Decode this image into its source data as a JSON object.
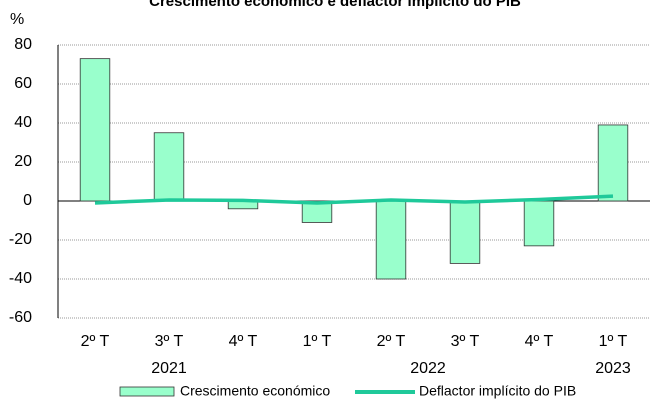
{
  "chart_data": {
    "type": "bar",
    "title": "Crescimento económico e deflactor implícito do PIB",
    "y_label": "%",
    "categories": [
      "2º T",
      "3º T",
      "4º T",
      "1º T",
      "2º T",
      "3º T",
      "4º T",
      "1º T"
    ],
    "category_groups": [
      {
        "label": "2021",
        "start": 0,
        "end": 2
      },
      {
        "label": "2022",
        "start": 3,
        "end": 6
      },
      {
        "label": "2023",
        "start": 7,
        "end": 7
      }
    ],
    "series": [
      {
        "name": "Crescimento económico",
        "type": "bar",
        "color": "#99ffcc",
        "values": [
          73,
          35,
          -4,
          -11,
          -40,
          -32,
          -23,
          39
        ]
      },
      {
        "name": "Deflactor implícito do PIB",
        "type": "line",
        "color": "#1fc99a",
        "values": [
          -1,
          0.5,
          0.3,
          -1,
          0.5,
          -0.5,
          0.8,
          2.5
        ]
      }
    ],
    "ylim": [
      -60,
      80
    ],
    "yticks": [
      -60,
      -40,
      -20,
      0,
      20,
      40,
      60,
      80
    ],
    "grid": true,
    "legend": "bottom"
  }
}
